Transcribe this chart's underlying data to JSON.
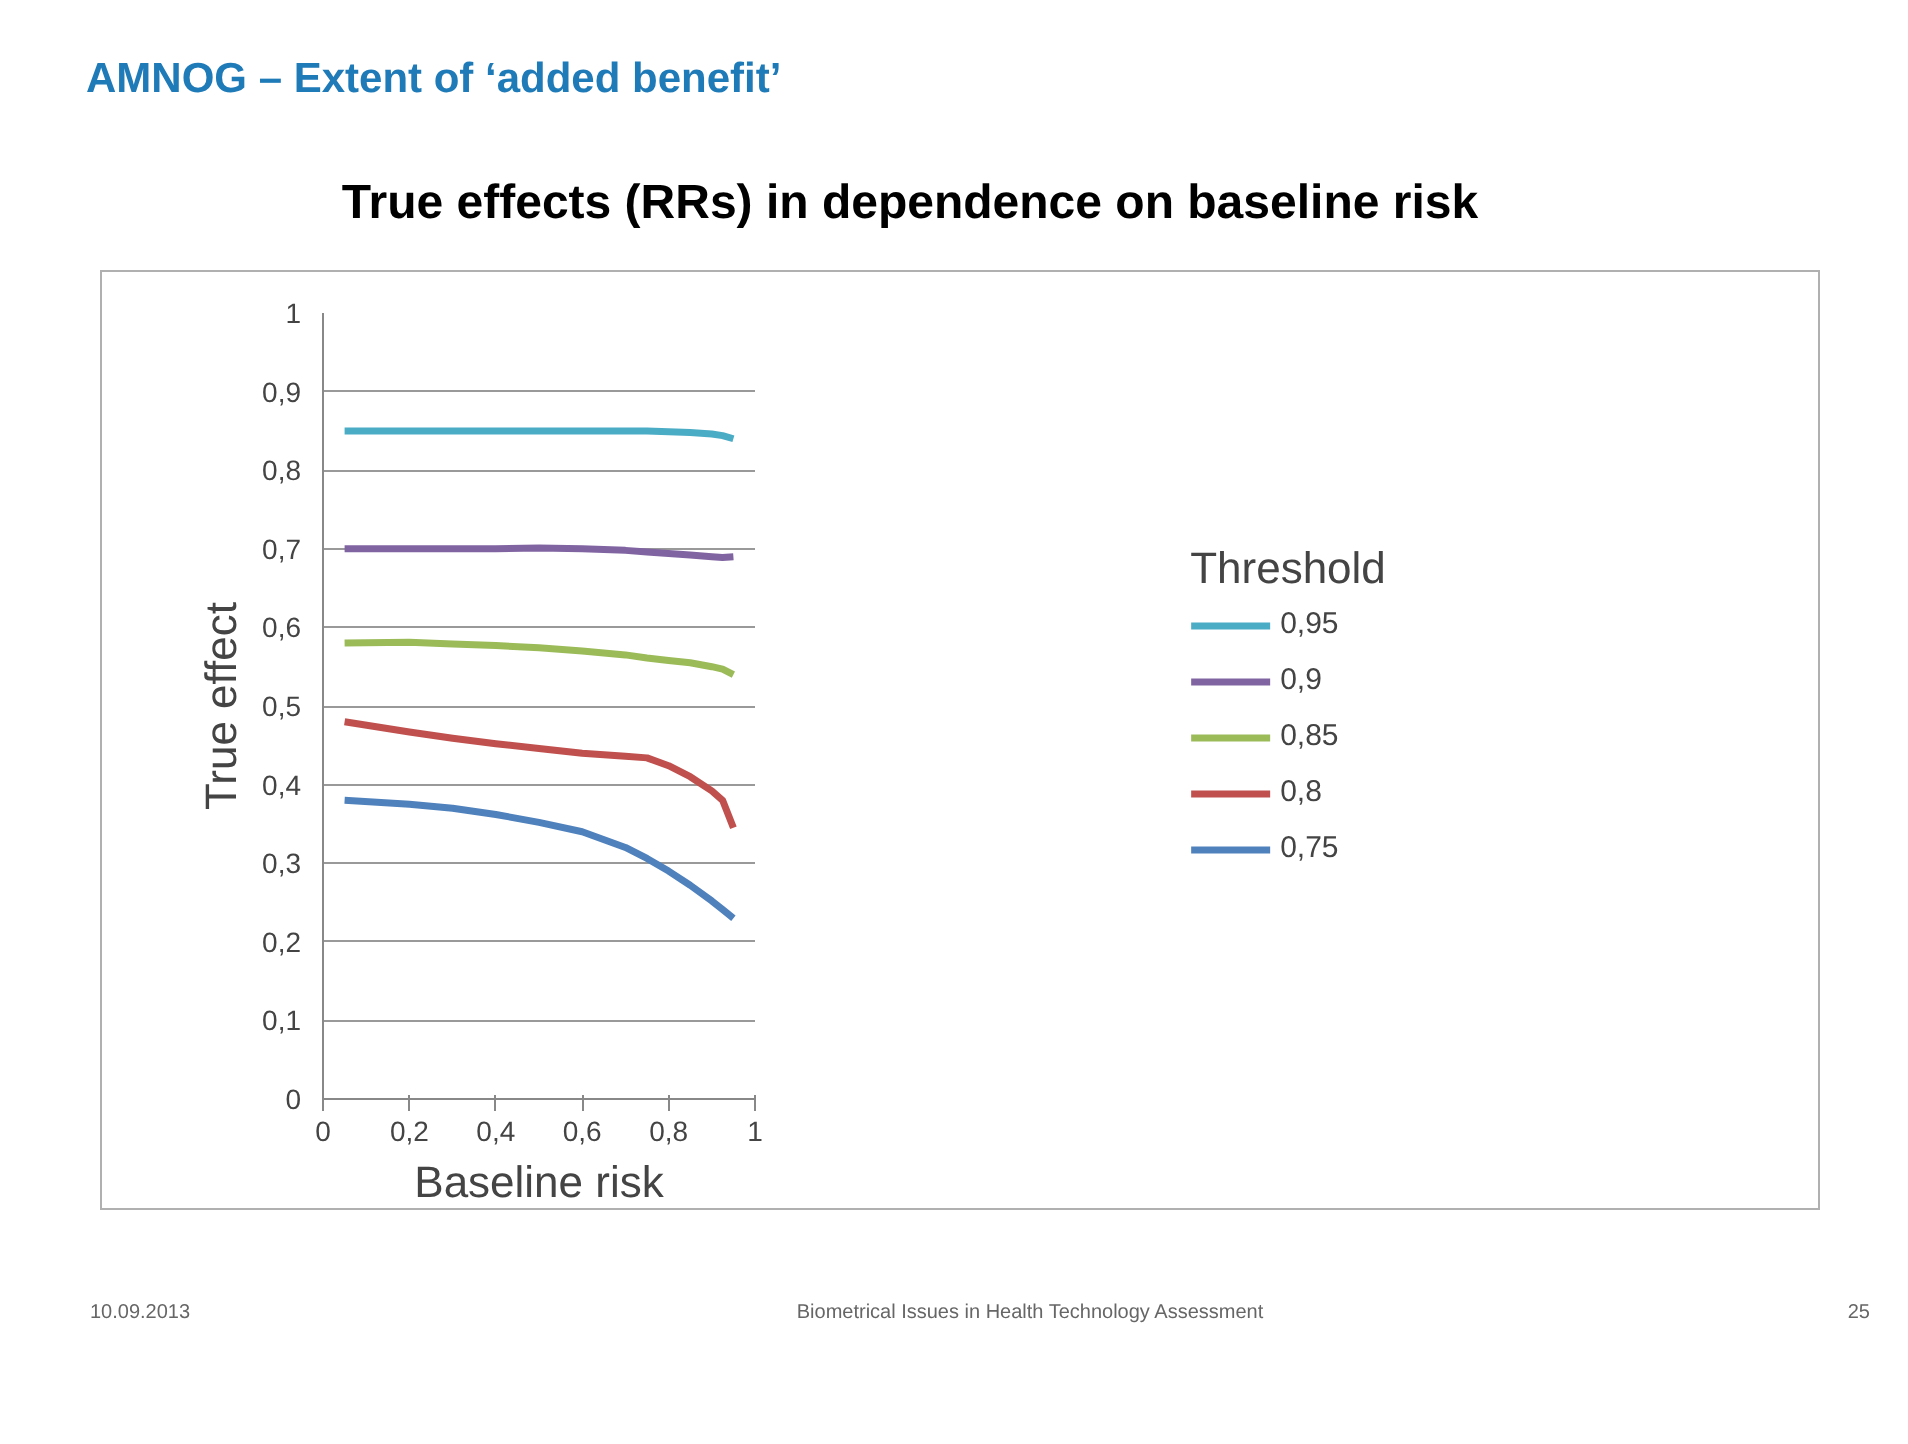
{
  "chart_data": {
    "type": "line",
    "title": "AMNOG – Extent of ‘added benefit’",
    "subtitle": "True effects (RRs) in dependence on baseline risk",
    "xlabel": "Baseline risk",
    "ylabel": "True effect",
    "legend_title": "Threshold",
    "x": [
      0.05,
      0.2,
      0.3,
      0.4,
      0.5,
      0.6,
      0.7,
      0.75,
      0.8,
      0.85,
      0.9,
      0.925,
      0.95
    ],
    "series": [
      {
        "name": "0,95",
        "color": "#4bacc6",
        "values": [
          0.85,
          0.85,
          0.85,
          0.85,
          0.85,
          0.85,
          0.85,
          0.85,
          0.849,
          0.848,
          0.846,
          0.844,
          0.84
        ]
      },
      {
        "name": "0,9",
        "color": "#8064a2",
        "values": [
          0.7,
          0.7,
          0.7,
          0.7,
          0.701,
          0.7,
          0.698,
          0.696,
          0.694,
          0.692,
          0.69,
          0.689,
          0.69
        ]
      },
      {
        "name": "0,85",
        "color": "#9bbb59",
        "values": [
          0.58,
          0.581,
          0.579,
          0.577,
          0.574,
          0.57,
          0.565,
          0.561,
          0.558,
          0.555,
          0.55,
          0.547,
          0.54
        ]
      },
      {
        "name": "0,8",
        "color": "#c0504d",
        "values": [
          0.48,
          0.467,
          0.459,
          0.452,
          0.446,
          0.44,
          0.436,
          0.434,
          0.424,
          0.41,
          0.392,
          0.38,
          0.345
        ]
      },
      {
        "name": "0,75",
        "color": "#4f81bd",
        "values": [
          0.38,
          0.375,
          0.37,
          0.362,
          0.352,
          0.34,
          0.32,
          0.306,
          0.29,
          0.272,
          0.252,
          0.241,
          0.23
        ]
      }
    ],
    "xlim": [
      0,
      1
    ],
    "ylim": [
      0,
      1
    ],
    "xticks": [
      0,
      {
        "value": 0.2,
        "label": "0,2"
      },
      {
        "value": 0.4,
        "label": "0,4"
      },
      {
        "value": 0.6,
        "label": "0,6"
      },
      {
        "value": 0.8,
        "label": "0,8"
      },
      1
    ],
    "yticks": [
      0,
      {
        "value": 0.1,
        "label": "0,1"
      },
      {
        "value": 0.2,
        "label": "0,2"
      },
      {
        "value": 0.3,
        "label": "0,3"
      },
      {
        "value": 0.4,
        "label": "0,4"
      },
      {
        "value": 0.5,
        "label": "0,5"
      },
      {
        "value": 0.6,
        "label": "0,6"
      },
      {
        "value": 0.7,
        "label": "0,7"
      },
      {
        "value": 0.8,
        "label": "0,8"
      },
      {
        "value": 0.9,
        "label": "0,9"
      },
      1
    ],
    "grid": "y",
    "legend": "right",
    "line_style": "solid",
    "marker": "none",
    "annotations": [
      "10.09.2013",
      "Biometrical Issues in Health Technology Assessment",
      "25"
    ]
  }
}
